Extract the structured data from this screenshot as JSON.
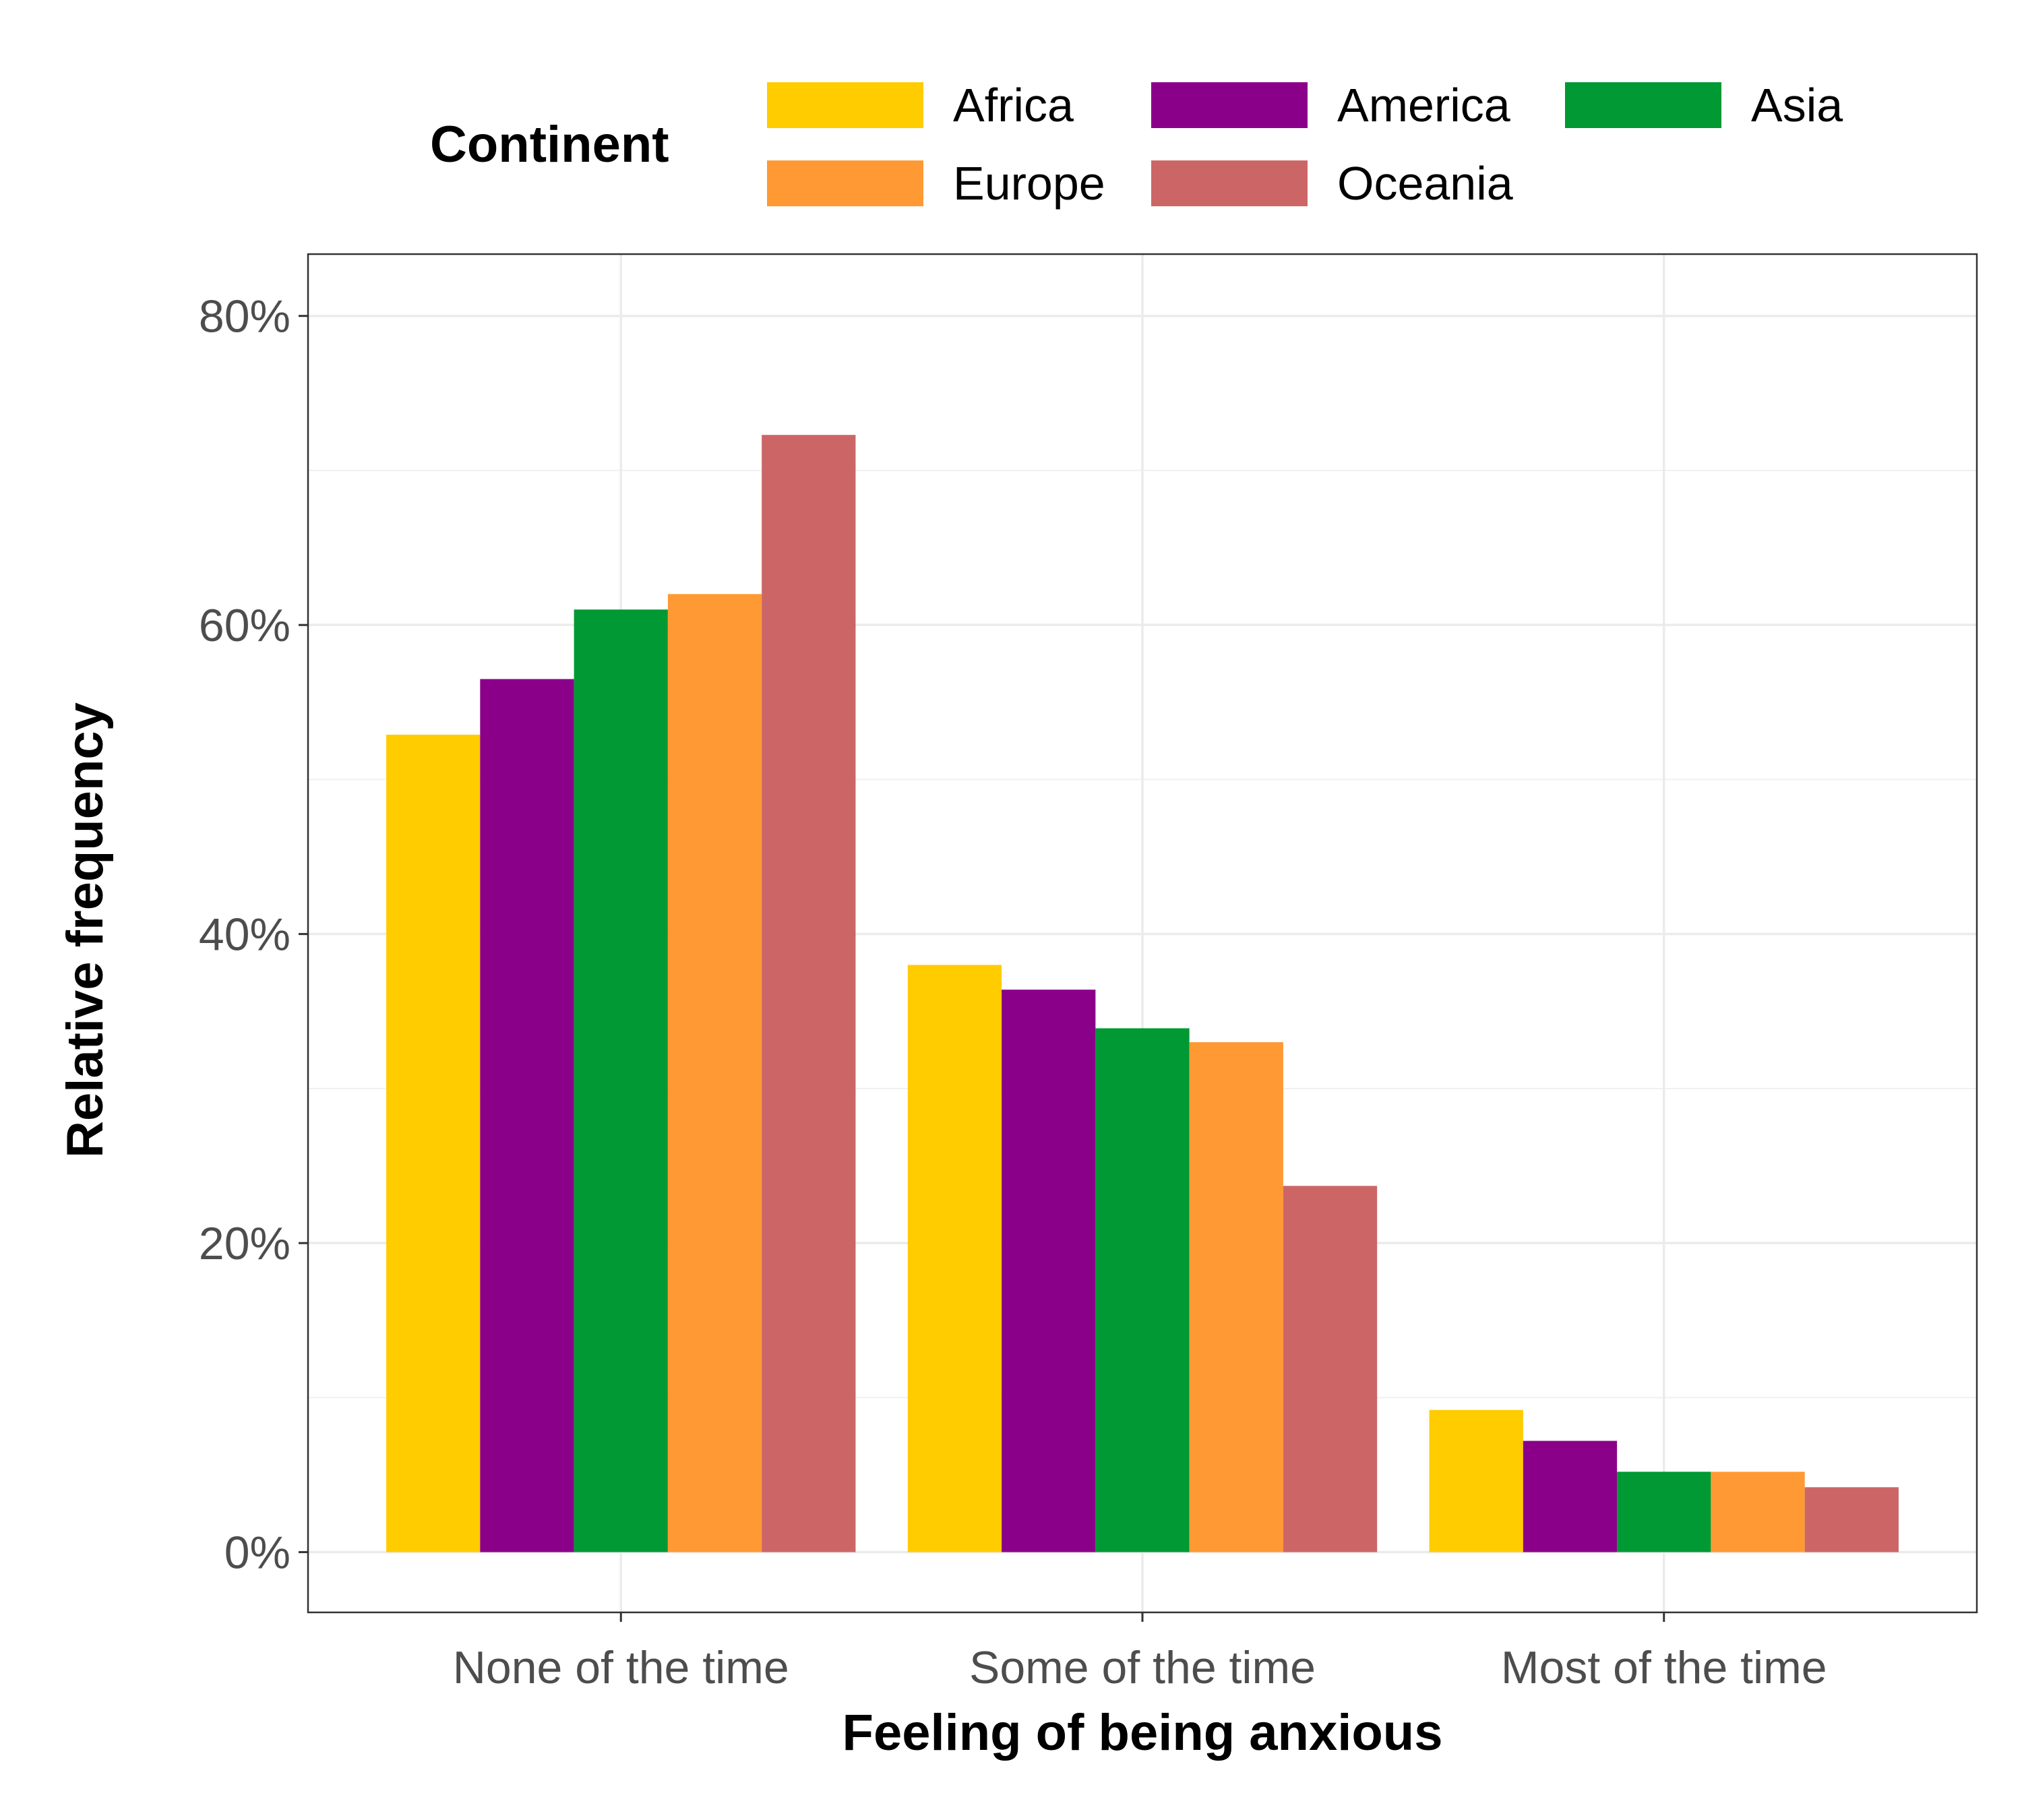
{
  "chart_data": {
    "type": "bar",
    "categories": [
      "None of the time",
      "Some of the time",
      "Most of the time"
    ],
    "series": [
      {
        "name": "Africa",
        "color": "#ffcc00",
        "values": [
          52.9,
          38.0,
          9.2
        ]
      },
      {
        "name": "America",
        "color": "#8b0089",
        "values": [
          56.5,
          36.4,
          7.2
        ]
      },
      {
        "name": "Asia",
        "color": "#009933",
        "values": [
          61.0,
          33.9,
          5.2
        ]
      },
      {
        "name": "Europe",
        "color": "#ff9933",
        "values": [
          62.0,
          33.0,
          5.2
        ]
      },
      {
        "name": "Oceania",
        "color": "#cc6666",
        "values": [
          72.3,
          23.7,
          4.2
        ]
      }
    ],
    "xlabel": "Feeling of being anxious",
    "ylabel": "Relative frequency",
    "ylim": [
      -3.9,
      84.0
    ],
    "yticks": [
      0,
      20,
      40,
      60,
      80
    ],
    "ytick_labels": [
      "0%",
      "20%",
      "40%",
      "60%",
      "80%"
    ],
    "grid": true,
    "legend": {
      "title": "Continent",
      "placement": "top"
    }
  }
}
